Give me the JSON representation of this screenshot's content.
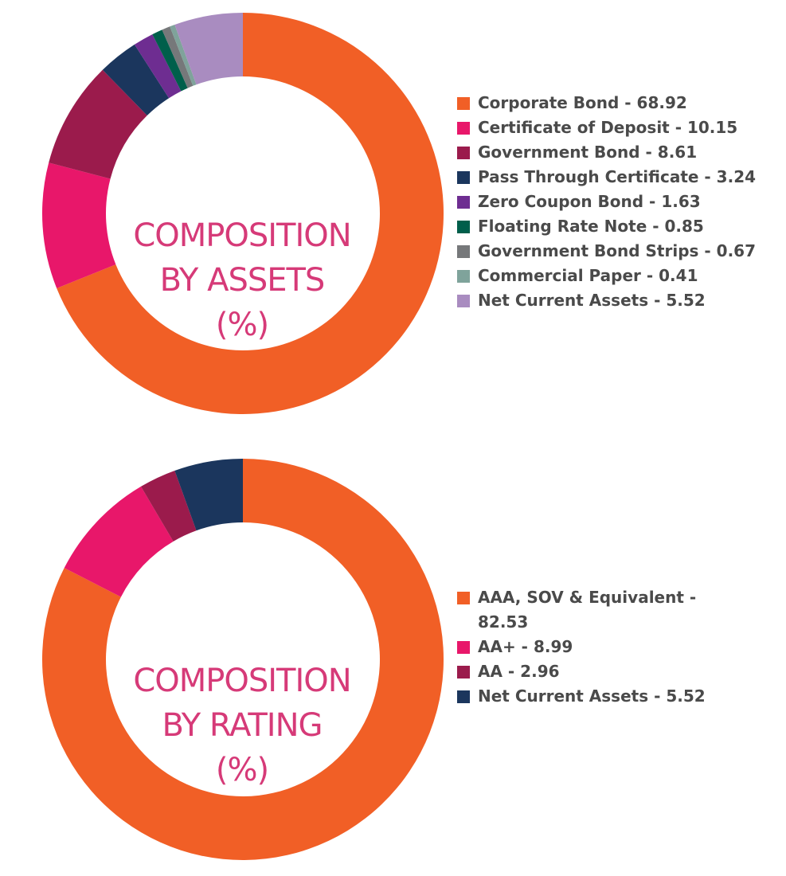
{
  "chart_data": [
    {
      "type": "pie",
      "variant": "donut",
      "title_lines": [
        "COMPOSITION",
        "BY ASSETS",
        "(%)"
      ],
      "categories": [
        "Corporate Bond - 68.92",
        "Certificate of Deposit - 10.15",
        "Government Bond - 8.61",
        "Pass Through Certificate - 3.24",
        "Zero Coupon Bond - 1.63",
        "Floating Rate Note - 0.85",
        "Government Bond Strips - 0.67",
        "Commercial Paper - 0.41",
        "Net Current Assets - 5.52"
      ],
      "values": [
        68.92,
        10.15,
        8.61,
        3.24,
        1.63,
        0.85,
        0.67,
        0.41,
        5.52
      ],
      "colors": [
        "#f15f26",
        "#e8176a",
        "#9b1b4c",
        "#1b365d",
        "#6e2d91",
        "#005f4b",
        "#76787a",
        "#7fa39b",
        "#a98cc0"
      ],
      "legend_position": "right"
    },
    {
      "type": "pie",
      "variant": "donut",
      "title_lines": [
        "COMPOSITION",
        "BY RATING",
        "(%)"
      ],
      "categories": [
        "AAA, SOV & Equivalent - 82.53",
        "AA+ - 8.99",
        "AA - 2.96",
        "Net Current Assets - 5.52"
      ],
      "values": [
        82.53,
        8.99,
        2.96,
        5.52
      ],
      "colors": [
        "#f15f26",
        "#e8176a",
        "#9b1b4c",
        "#1b365d"
      ],
      "legend_position": "right"
    }
  ]
}
